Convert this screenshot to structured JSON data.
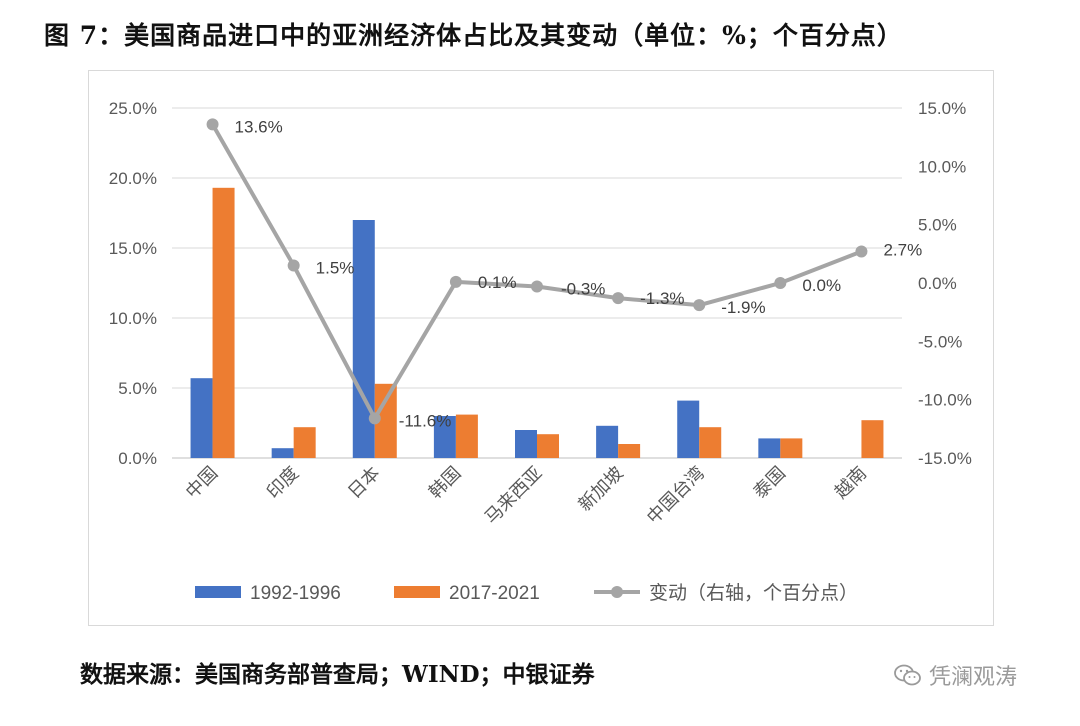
{
  "title": "图 7：美国商品进口中的亚洲经济体占比及其变动（单位：%；个百分点）",
  "source": "数据来源：美国商务部普查局；WIND；中银证券",
  "watermark": "凭澜观涛",
  "colors": {
    "series_1992": "#4472C4",
    "series_2017": "#ED7D31",
    "change_line": "#A5A5A5",
    "gridline": "#D9D9D9",
    "axis_text": "#595959"
  },
  "chart_data": {
    "type": "bar",
    "categories": [
      "中国",
      "印度",
      "日本",
      "韩国",
      "马来西亚",
      "新加坡",
      "中国台湾",
      "泰国",
      "越南"
    ],
    "series": [
      {
        "name": "1992-1996",
        "type": "bar",
        "axis": "left",
        "values": [
          5.7,
          0.7,
          17.0,
          3.0,
          2.0,
          2.3,
          4.1,
          1.4,
          0.0
        ]
      },
      {
        "name": "2017-2021",
        "type": "bar",
        "axis": "left",
        "values": [
          19.3,
          2.2,
          5.3,
          3.1,
          1.7,
          1.0,
          2.2,
          1.4,
          2.7
        ]
      },
      {
        "name": "变动（右轴，个百分点）",
        "type": "line",
        "axis": "right",
        "values": [
          13.6,
          1.5,
          -11.6,
          0.1,
          -0.3,
          -1.3,
          -1.9,
          0.0,
          2.7
        ],
        "labels": [
          "13.6%",
          "1.5%",
          "-11.6%",
          "0.1%",
          "-0.3%",
          "-1.3%",
          "-1.9%",
          "0.0%",
          "2.7%"
        ]
      }
    ],
    "ylim_left": [
      0,
      25
    ],
    "ylim_right": [
      -15,
      15
    ],
    "yticks_left": [
      "0.0%",
      "5.0%",
      "10.0%",
      "15.0%",
      "20.0%",
      "25.0%"
    ],
    "yticks_right": [
      "-15.0%",
      "-10.0%",
      "-5.0%",
      "0.0%",
      "5.0%",
      "10.0%",
      "15.0%"
    ],
    "grid": true,
    "legend_position": "bottom",
    "legend": [
      "1992-1996",
      "2017-2021",
      "变动（右轴，个百分点）"
    ]
  }
}
